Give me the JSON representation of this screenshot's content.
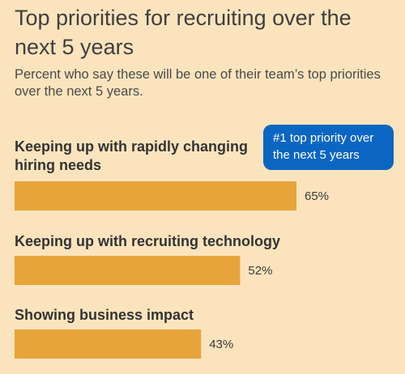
{
  "chart_data": {
    "type": "bar",
    "orientation": "horizontal",
    "title": "Top priorities for recruiting over the next 5 years",
    "subtitle": "Percent who say these will be one of their team’s top priorities over the next 5 years.",
    "categories": [
      "Keeping up with rapidly changing hiring needs",
      "Keeping up with recruiting technology",
      "Showing business impact"
    ],
    "values": [
      65,
      52,
      43
    ],
    "value_labels": [
      "65%",
      "52%",
      "43%"
    ],
    "xlim": [
      0,
      100
    ],
    "grid": false,
    "legend": "none",
    "annotation": "#1 top priority over the next 5 years",
    "colors": {
      "bar": "#e6a43b",
      "background": "#fbe4bd",
      "callout": "#0a66c2"
    }
  }
}
